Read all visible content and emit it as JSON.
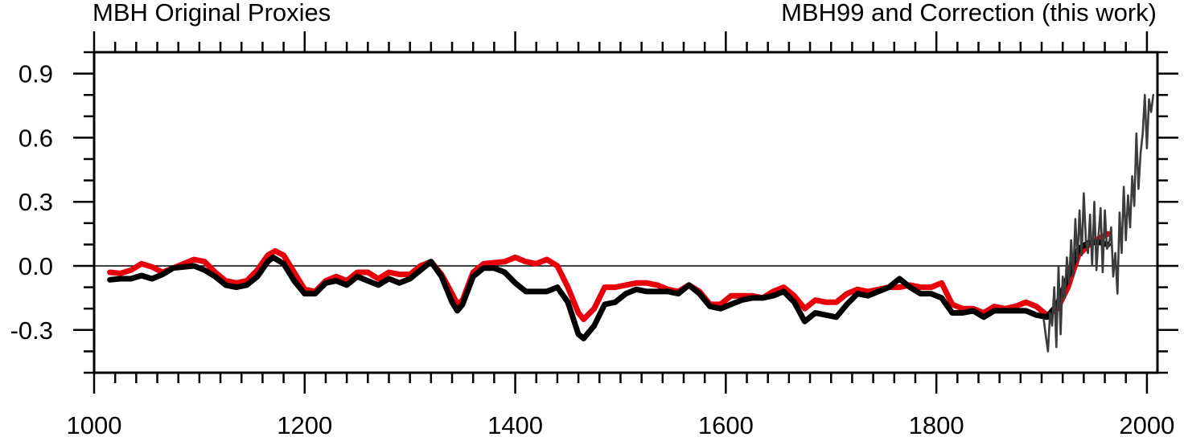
{
  "chart_data": {
    "type": "line",
    "title_left": "MBH Original Proxies",
    "title_right": "MBH99 and Correction (this work)",
    "xlim": [
      1000,
      2010
    ],
    "ylim": [
      -0.5,
      1.0
    ],
    "xticks": [
      1000,
      1200,
      1400,
      1600,
      1800,
      2000
    ],
    "xtick_labels": [
      "1000",
      "1200",
      "1400",
      "1600",
      "1800",
      "2000"
    ],
    "yticks": [
      0.9,
      0.6,
      0.3,
      0.0,
      -0.3
    ],
    "ytick_labels": [
      "0.9",
      "0.6",
      "0.3",
      "0.0",
      "-0.3"
    ],
    "zero_line": true,
    "grid": false,
    "series": [
      {
        "color": "#e8000b",
        "x": [
          1015,
          1025,
          1035,
          1045,
          1055,
          1065,
          1075,
          1085,
          1095,
          1105,
          1115,
          1125,
          1135,
          1145,
          1155,
          1165,
          1172,
          1180,
          1190,
          1200,
          1210,
          1220,
          1230,
          1240,
          1250,
          1260,
          1270,
          1280,
          1290,
          1300,
          1310,
          1320,
          1330,
          1340,
          1345,
          1350,
          1360,
          1370,
          1380,
          1390,
          1400,
          1410,
          1420,
          1430,
          1440,
          1450,
          1460,
          1465,
          1475,
          1485,
          1495,
          1505,
          1515,
          1525,
          1535,
          1545,
          1555,
          1565,
          1575,
          1585,
          1595,
          1605,
          1615,
          1625,
          1635,
          1645,
          1655,
          1665,
          1675,
          1685,
          1695,
          1705,
          1715,
          1725,
          1735,
          1745,
          1755,
          1765,
          1775,
          1785,
          1795,
          1805,
          1815,
          1825,
          1835,
          1845,
          1855,
          1865,
          1875,
          1885,
          1895,
          1905,
          1915,
          1925,
          1935,
          1945,
          1955,
          1963
        ],
        "y": [
          -0.03,
          -0.035,
          -0.02,
          0.01,
          -0.005,
          -0.03,
          -0.01,
          0.01,
          0.03,
          0.02,
          -0.03,
          -0.07,
          -0.08,
          -0.07,
          -0.02,
          0.05,
          0.07,
          0.05,
          -0.03,
          -0.11,
          -0.12,
          -0.07,
          -0.05,
          -0.07,
          -0.03,
          -0.03,
          -0.06,
          -0.03,
          -0.04,
          -0.04,
          0.0,
          0.02,
          -0.04,
          -0.13,
          -0.18,
          -0.16,
          -0.03,
          0.01,
          0.015,
          0.02,
          0.04,
          0.02,
          0.01,
          0.03,
          0.0,
          -0.1,
          -0.22,
          -0.25,
          -0.2,
          -0.1,
          -0.1,
          -0.09,
          -0.08,
          -0.08,
          -0.09,
          -0.11,
          -0.12,
          -0.09,
          -0.12,
          -0.18,
          -0.18,
          -0.14,
          -0.14,
          -0.14,
          -0.15,
          -0.12,
          -0.1,
          -0.14,
          -0.2,
          -0.16,
          -0.17,
          -0.17,
          -0.13,
          -0.11,
          -0.12,
          -0.11,
          -0.1,
          -0.1,
          -0.09,
          -0.1,
          -0.1,
          -0.08,
          -0.18,
          -0.2,
          -0.2,
          -0.22,
          -0.19,
          -0.2,
          -0.19,
          -0.17,
          -0.19,
          -0.23,
          -0.2,
          -0.1,
          0.05,
          0.1,
          0.13,
          0.15
        ]
      },
      {
        "color": "#000000",
        "x": [
          1015,
          1025,
          1035,
          1045,
          1055,
          1065,
          1075,
          1085,
          1095,
          1105,
          1115,
          1125,
          1135,
          1145,
          1155,
          1165,
          1170,
          1180,
          1190,
          1200,
          1210,
          1220,
          1230,
          1240,
          1250,
          1260,
          1270,
          1280,
          1290,
          1300,
          1310,
          1320,
          1330,
          1340,
          1345,
          1350,
          1360,
          1370,
          1380,
          1390,
          1400,
          1410,
          1420,
          1430,
          1440,
          1450,
          1460,
          1465,
          1475,
          1485,
          1495,
          1505,
          1515,
          1525,
          1535,
          1545,
          1555,
          1565,
          1575,
          1585,
          1595,
          1605,
          1615,
          1625,
          1635,
          1645,
          1655,
          1665,
          1675,
          1685,
          1695,
          1705,
          1715,
          1725,
          1735,
          1745,
          1755,
          1765,
          1775,
          1785,
          1795,
          1805,
          1815,
          1825,
          1835,
          1845,
          1855,
          1865,
          1875,
          1885,
          1895,
          1905,
          1915,
          1925,
          1935,
          1945,
          1955,
          1963
        ],
        "y": [
          -0.065,
          -0.06,
          -0.06,
          -0.045,
          -0.06,
          -0.04,
          -0.01,
          -0.005,
          0.0,
          -0.02,
          -0.05,
          -0.09,
          -0.1,
          -0.09,
          -0.05,
          0.02,
          0.04,
          0.01,
          -0.07,
          -0.13,
          -0.13,
          -0.08,
          -0.07,
          -0.09,
          -0.05,
          -0.07,
          -0.09,
          -0.06,
          -0.08,
          -0.06,
          -0.02,
          0.02,
          -0.05,
          -0.17,
          -0.21,
          -0.18,
          -0.05,
          -0.01,
          -0.01,
          -0.03,
          -0.08,
          -0.12,
          -0.12,
          -0.12,
          -0.1,
          -0.17,
          -0.32,
          -0.34,
          -0.28,
          -0.18,
          -0.17,
          -0.13,
          -0.11,
          -0.12,
          -0.12,
          -0.12,
          -0.13,
          -0.09,
          -0.13,
          -0.19,
          -0.2,
          -0.18,
          -0.16,
          -0.15,
          -0.15,
          -0.14,
          -0.12,
          -0.17,
          -0.26,
          -0.22,
          -0.23,
          -0.24,
          -0.18,
          -0.13,
          -0.14,
          -0.12,
          -0.1,
          -0.06,
          -0.1,
          -0.13,
          -0.13,
          -0.15,
          -0.22,
          -0.22,
          -0.21,
          -0.24,
          -0.21,
          -0.21,
          -0.21,
          -0.21,
          -0.23,
          -0.24,
          -0.18,
          -0.05,
          0.08,
          0.11,
          0.11,
          0.1
        ]
      },
      {
        "color": "#3c3c3c",
        "x": [
          1902,
          1904,
          1906,
          1908,
          1910,
          1912,
          1914,
          1916,
          1918,
          1920,
          1922,
          1924,
          1926,
          1928,
          1930,
          1932,
          1934,
          1936,
          1938,
          1940,
          1942,
          1944,
          1946,
          1948,
          1950,
          1952,
          1954,
          1956,
          1958,
          1960,
          1962,
          1964,
          1966,
          1968,
          1970,
          1972,
          1974,
          1976,
          1978,
          1980,
          1982,
          1984,
          1986,
          1988,
          1990,
          1992,
          1994,
          1996,
          1998,
          2000,
          2002,
          2004,
          2006
        ],
        "y": [
          -0.25,
          -0.33,
          -0.4,
          -0.22,
          -0.28,
          -0.1,
          -0.38,
          0.0,
          -0.32,
          -0.05,
          -0.15,
          0.04,
          -0.08,
          0.12,
          -0.05,
          0.22,
          0.02,
          0.26,
          0.05,
          0.34,
          0.12,
          0.06,
          0.24,
          0.0,
          0.3,
          -0.02,
          0.14,
          0.27,
          -0.03,
          0.26,
          0.08,
          0.1,
          0.18,
          -0.05,
          0.06,
          -0.13,
          0.25,
          0.06,
          0.37,
          0.12,
          0.33,
          0.18,
          0.42,
          0.28,
          0.62,
          0.36,
          0.53,
          0.62,
          0.8,
          0.55,
          0.78,
          0.72,
          0.8
        ]
      }
    ]
  }
}
